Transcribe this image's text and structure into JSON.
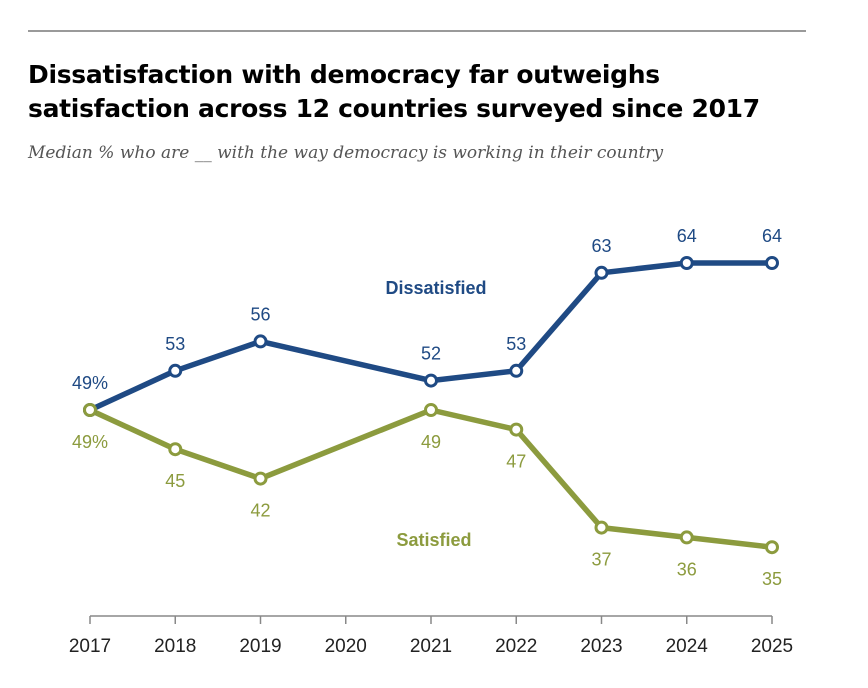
{
  "title_line1": "Dissatisfaction with democracy far outweighs",
  "title_line2": "satisfaction across 12 countries surveyed since 2017",
  "subtitle": "Median % who are __ with the way democracy is working in their country",
  "colors": {
    "dissatisfied": "#1f4a84",
    "satisfied": "#8c9b3e"
  },
  "chart_data": {
    "type": "line",
    "x": [
      "2017",
      "2018",
      "2019",
      "2020",
      "2021",
      "2022",
      "2023",
      "2024",
      "2025"
    ],
    "series": [
      {
        "name": "Dissatisfied",
        "key": "dissatisfied",
        "points": [
          {
            "x": "2017",
            "y": 49,
            "label": "49%"
          },
          {
            "x": "2018",
            "y": 53,
            "label": "53"
          },
          {
            "x": "2019",
            "y": 56,
            "label": "56"
          },
          {
            "x": "2021",
            "y": 52,
            "label": "52"
          },
          {
            "x": "2022",
            "y": 53,
            "label": "53"
          },
          {
            "x": "2023",
            "y": 63,
            "label": "63"
          },
          {
            "x": "2024",
            "y": 64,
            "label": "64"
          },
          {
            "x": "2025",
            "y": 64,
            "label": "64"
          }
        ]
      },
      {
        "name": "Satisfied",
        "key": "satisfied",
        "points": [
          {
            "x": "2017",
            "y": 49,
            "label": "49%"
          },
          {
            "x": "2018",
            "y": 45,
            "label": "45"
          },
          {
            "x": "2019",
            "y": 42,
            "label": "42"
          },
          {
            "x": "2021",
            "y": 49,
            "label": "49"
          },
          {
            "x": "2022",
            "y": 47,
            "label": "47"
          },
          {
            "x": "2023",
            "y": 37,
            "label": "37"
          },
          {
            "x": "2024",
            "y": 36,
            "label": "36"
          },
          {
            "x": "2025",
            "y": 35,
            "label": "35"
          }
        ]
      }
    ],
    "ylim": [
      20,
      80
    ],
    "grid": false
  }
}
